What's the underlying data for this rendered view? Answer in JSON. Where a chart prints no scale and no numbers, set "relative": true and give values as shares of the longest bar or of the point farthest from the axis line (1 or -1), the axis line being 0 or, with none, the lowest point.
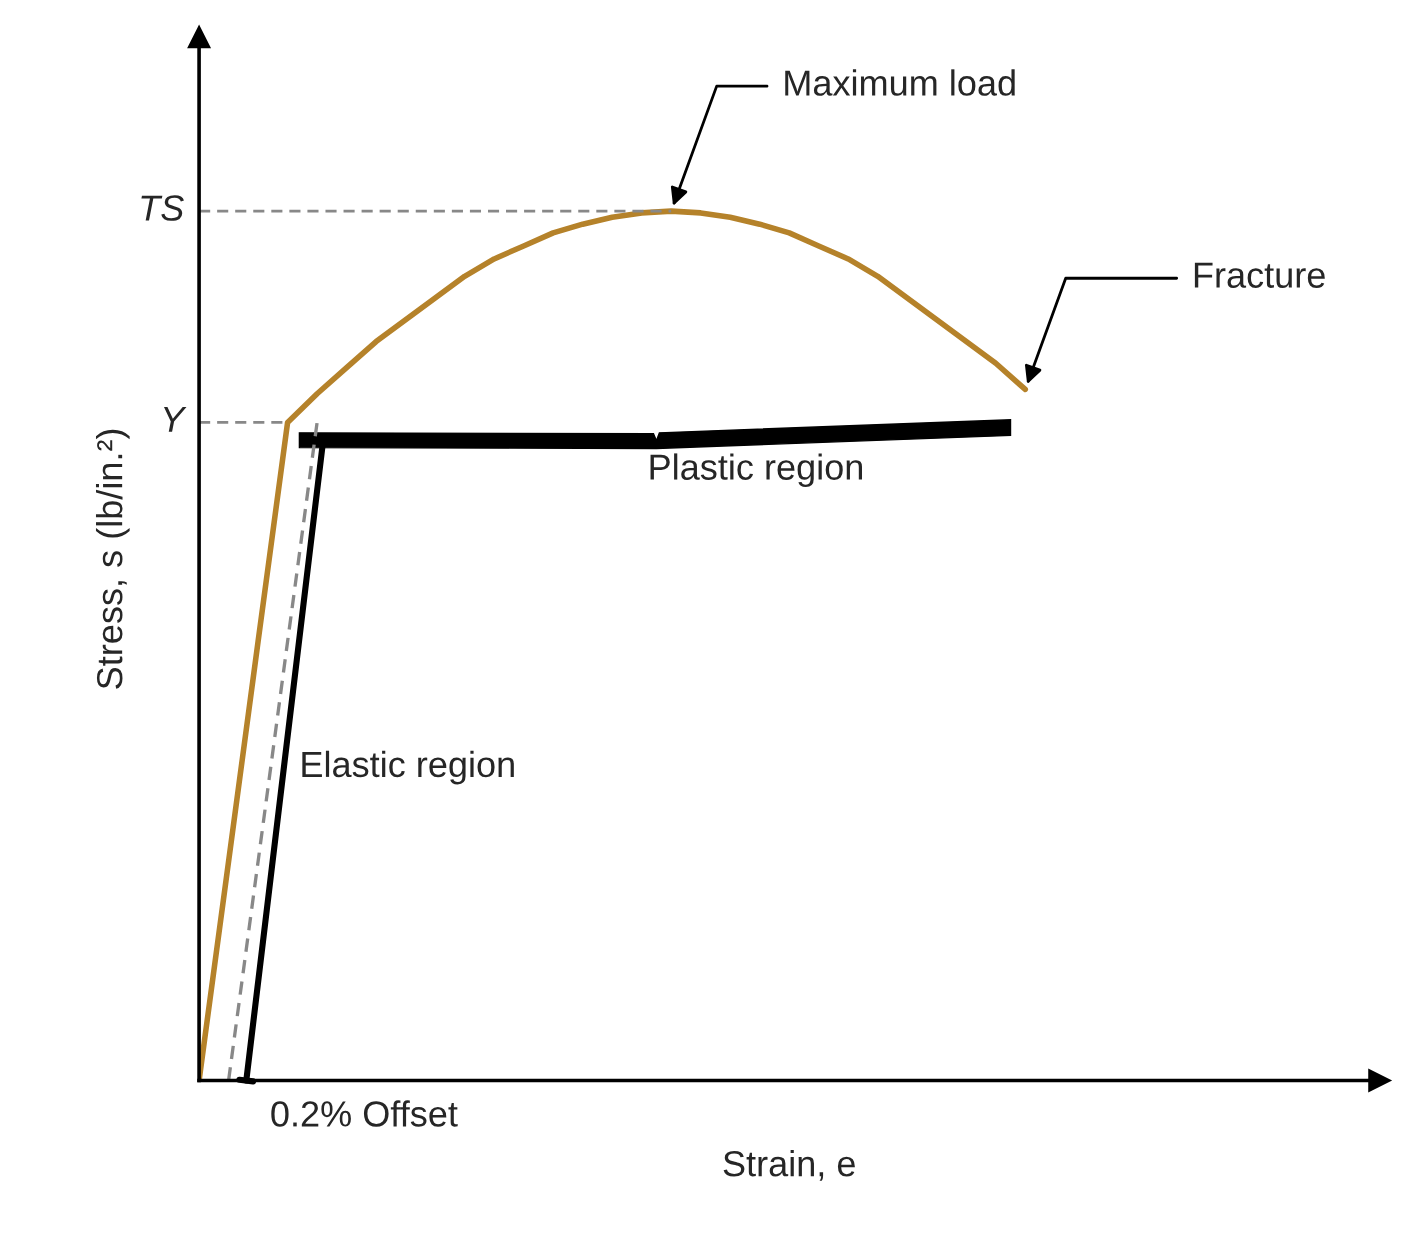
{
  "chart_data": {
    "type": "line",
    "relative": true,
    "xlabel": "Strain, e",
    "ylabel": "Stress, s (lb/in.²)",
    "legend": false,
    "categories": [
      null,
      null,
      null,
      null,
      null,
      null,
      null,
      null,
      null,
      null,
      null,
      null,
      null,
      null,
      null,
      null,
      null,
      null,
      null,
      null,
      null,
      null,
      null,
      null,
      null,
      null,
      null,
      null,
      null,
      null,
      null,
      null,
      null,
      null,
      null,
      null,
      null,
      null,
      null,
      null
    ],
    "series": [
      {
        "color": "#b5822a",
        "line_style": "solid",
        "values": [
          0,
          0.252,
          0.505,
          0.757,
          0.79,
          0.82,
          0.85,
          0.875,
          0.9,
          0.925,
          0.945,
          0.96,
          0.975,
          0.985,
          0.993,
          0.998,
          1,
          0.998,
          0.993,
          0.985,
          0.975,
          0.96,
          0.945,
          0.925,
          0.9,
          0.875,
          0.85,
          0.825,
          0.795,
          null,
          null,
          null,
          null,
          null,
          null,
          null,
          null,
          null,
          null,
          null
        ]
      },
      {
        "color": "#888888",
        "line_style": "dashed",
        "values": [
          null,
          0,
          0.252,
          0.505,
          0.757,
          null,
          null,
          null,
          null,
          null,
          null,
          null,
          null,
          null,
          null,
          null,
          null,
          null,
          null,
          null,
          null,
          null,
          null,
          null,
          null,
          null,
          null,
          null,
          null,
          null,
          null,
          null,
          null,
          null,
          null,
          null,
          null,
          null,
          null,
          null
        ]
      }
    ],
    "ref_lines": [
      {
        "axis": "y",
        "value": 1,
        "label": "TS",
        "color": "#888888",
        "line_style": "dashed"
      },
      {
        "axis": "y",
        "value": 0.757,
        "label": "Y",
        "color": "#888888",
        "line_style": "dashed"
      }
    ],
    "annotations": [
      "Maximum load",
      "Fracture",
      "Plastic region",
      "Elastic region",
      "0.2% Offset"
    ]
  }
}
